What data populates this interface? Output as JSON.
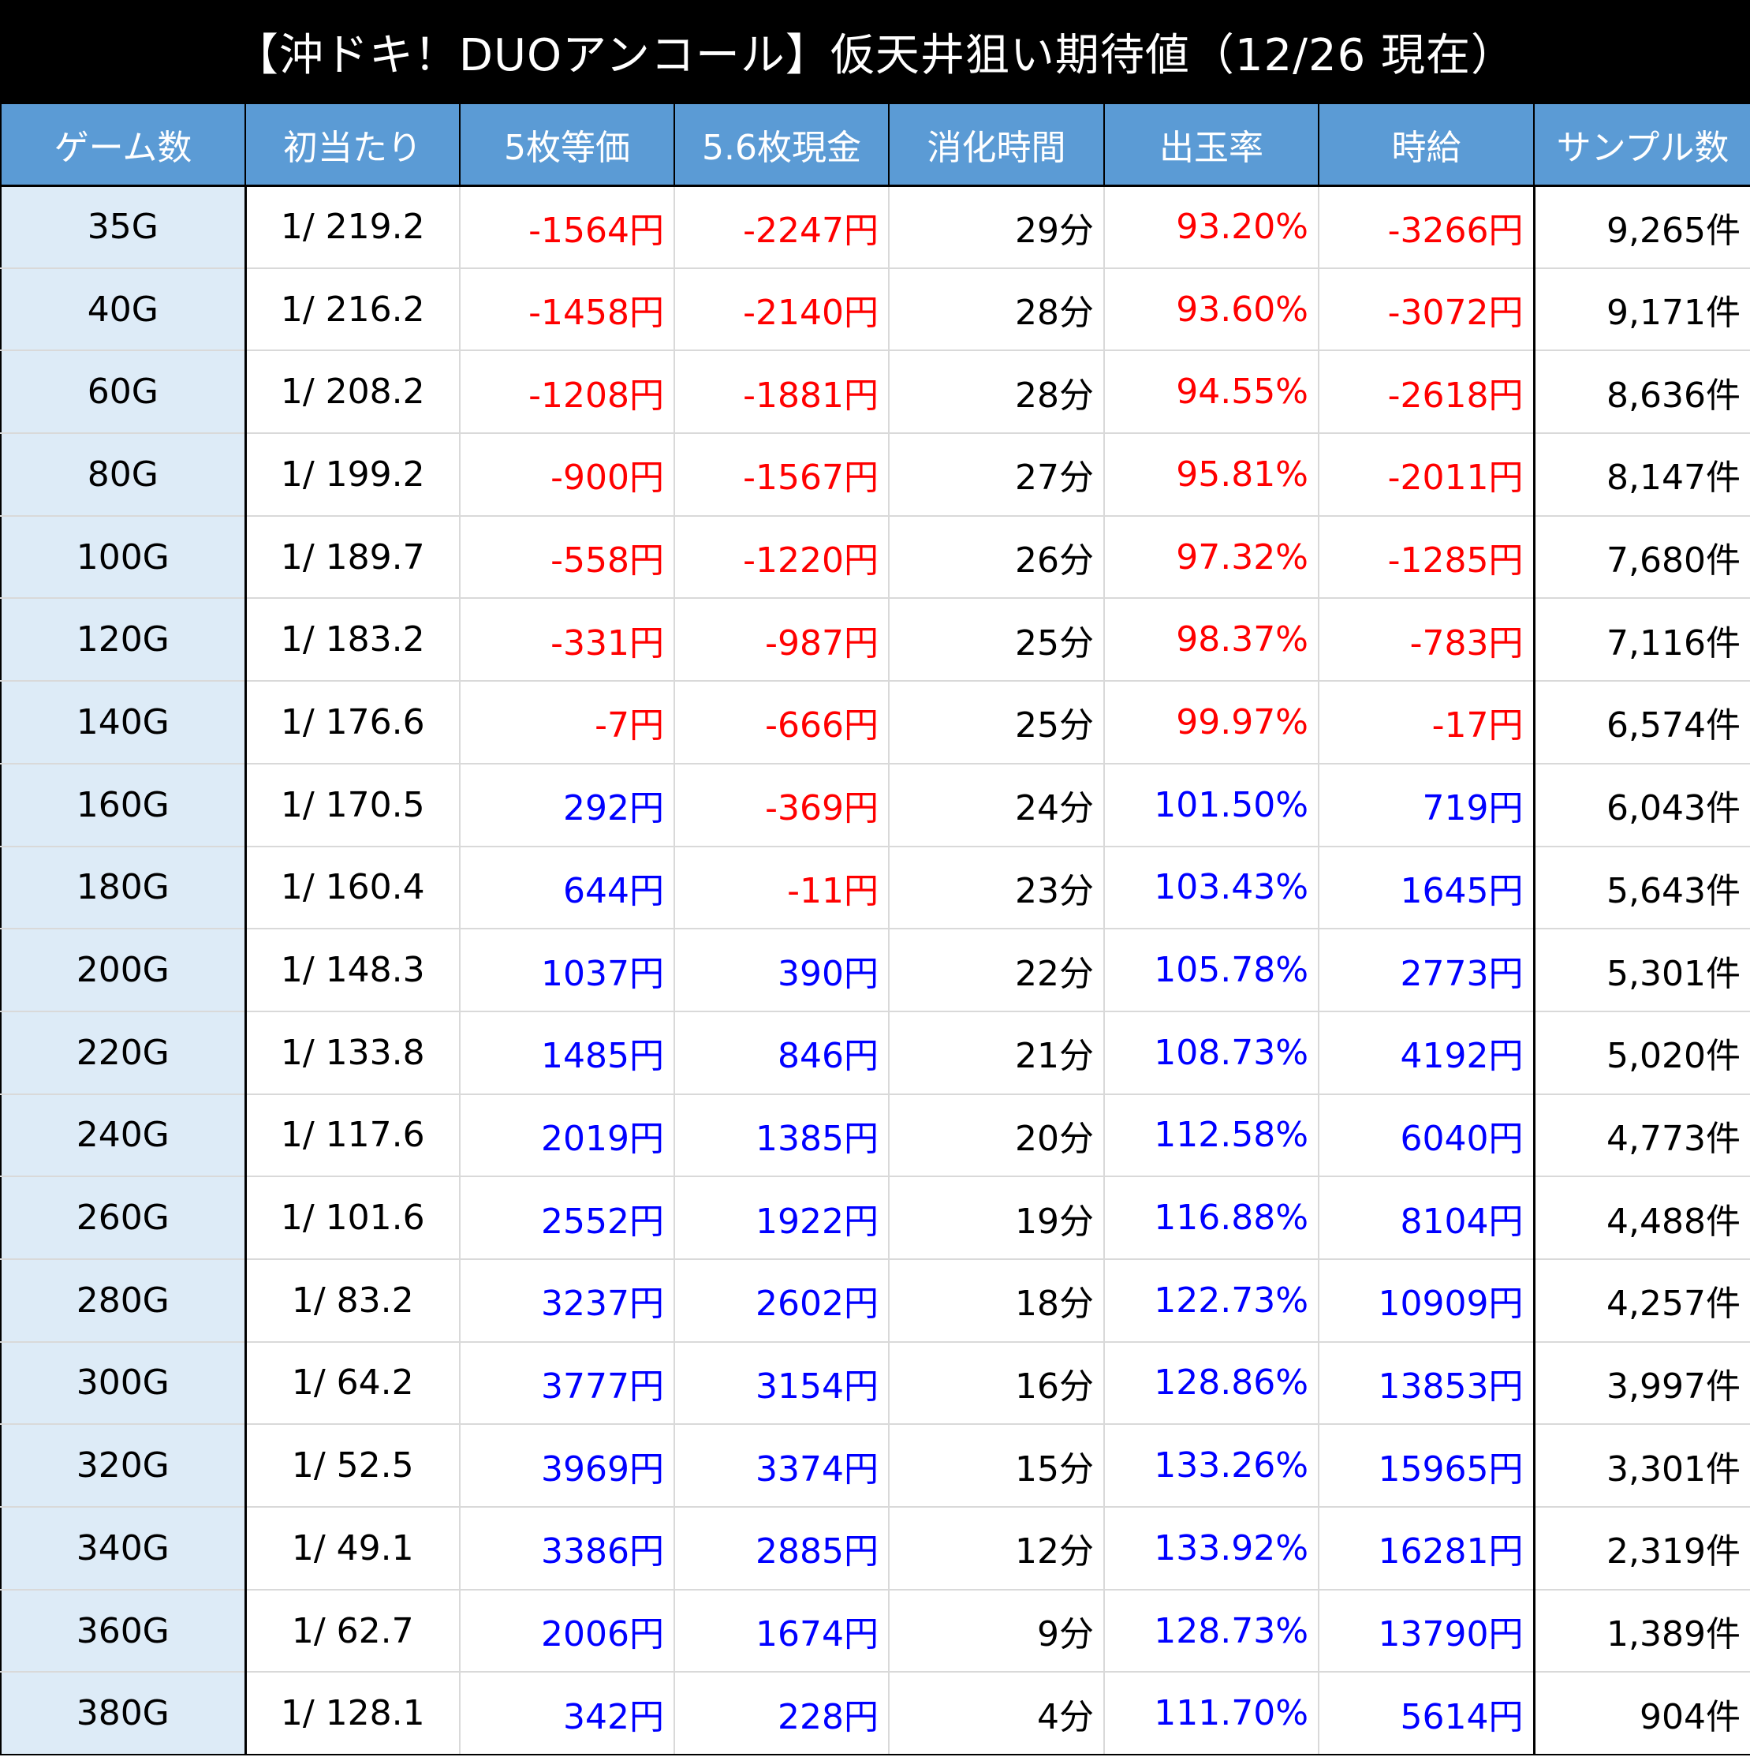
{
  "title": "【沖ドキ！DUOアンコール】仮天井狙い期待値（12/26 現在）",
  "colors": {
    "header_bg": "#5b9bd5",
    "first_col_bg": "#ddebf7",
    "negative": "#ff0000",
    "positive": "#0000ff"
  },
  "headers": [
    "ゲーム数",
    "初当たり",
    "5枚等価",
    "5.6枚現金",
    "消化時間",
    "出玉率",
    "時給",
    "サンプル数"
  ],
  "rows": [
    {
      "game": "35G",
      "hit": "1/ 219.2",
      "eq5": "-1564円",
      "cash56": "-2247円",
      "time": "29分",
      "rate": "93.20%",
      "hourly": "-3266円",
      "samples": "9,265件"
    },
    {
      "game": "40G",
      "hit": "1/ 216.2",
      "eq5": "-1458円",
      "cash56": "-2140円",
      "time": "28分",
      "rate": "93.60%",
      "hourly": "-3072円",
      "samples": "9,171件"
    },
    {
      "game": "60G",
      "hit": "1/ 208.2",
      "eq5": "-1208円",
      "cash56": "-1881円",
      "time": "28分",
      "rate": "94.55%",
      "hourly": "-2618円",
      "samples": "8,636件"
    },
    {
      "game": "80G",
      "hit": "1/ 199.2",
      "eq5": "-900円",
      "cash56": "-1567円",
      "time": "27分",
      "rate": "95.81%",
      "hourly": "-2011円",
      "samples": "8,147件"
    },
    {
      "game": "100G",
      "hit": "1/ 189.7",
      "eq5": "-558円",
      "cash56": "-1220円",
      "time": "26分",
      "rate": "97.32%",
      "hourly": "-1285円",
      "samples": "7,680件"
    },
    {
      "game": "120G",
      "hit": "1/ 183.2",
      "eq5": "-331円",
      "cash56": "-987円",
      "time": "25分",
      "rate": "98.37%",
      "hourly": "-783円",
      "samples": "7,116件"
    },
    {
      "game": "140G",
      "hit": "1/ 176.6",
      "eq5": "-7円",
      "cash56": "-666円",
      "time": "25分",
      "rate": "99.97%",
      "hourly": "-17円",
      "samples": "6,574件"
    },
    {
      "game": "160G",
      "hit": "1/ 170.5",
      "eq5": "292円",
      "cash56": "-369円",
      "time": "24分",
      "rate": "101.50%",
      "hourly": "719円",
      "samples": "6,043件"
    },
    {
      "game": "180G",
      "hit": "1/ 160.4",
      "eq5": "644円",
      "cash56": "-11円",
      "time": "23分",
      "rate": "103.43%",
      "hourly": "1645円",
      "samples": "5,643件"
    },
    {
      "game": "200G",
      "hit": "1/ 148.3",
      "eq5": "1037円",
      "cash56": "390円",
      "time": "22分",
      "rate": "105.78%",
      "hourly": "2773円",
      "samples": "5,301件"
    },
    {
      "game": "220G",
      "hit": "1/ 133.8",
      "eq5": "1485円",
      "cash56": "846円",
      "time": "21分",
      "rate": "108.73%",
      "hourly": "4192円",
      "samples": "5,020件"
    },
    {
      "game": "240G",
      "hit": "1/ 117.6",
      "eq5": "2019円",
      "cash56": "1385円",
      "time": "20分",
      "rate": "112.58%",
      "hourly": "6040円",
      "samples": "4,773件"
    },
    {
      "game": "260G",
      "hit": "1/ 101.6",
      "eq5": "2552円",
      "cash56": "1922円",
      "time": "19分",
      "rate": "116.88%",
      "hourly": "8104円",
      "samples": "4,488件"
    },
    {
      "game": "280G",
      "hit": "1/ 83.2",
      "eq5": "3237円",
      "cash56": "2602円",
      "time": "18分",
      "rate": "122.73%",
      "hourly": "10909円",
      "samples": "4,257件"
    },
    {
      "game": "300G",
      "hit": "1/ 64.2",
      "eq5": "3777円",
      "cash56": "3154円",
      "time": "16分",
      "rate": "128.86%",
      "hourly": "13853円",
      "samples": "3,997件"
    },
    {
      "game": "320G",
      "hit": "1/ 52.5",
      "eq5": "3969円",
      "cash56": "3374円",
      "time": "15分",
      "rate": "133.26%",
      "hourly": "15965円",
      "samples": "3,301件"
    },
    {
      "game": "340G",
      "hit": "1/ 49.1",
      "eq5": "3386円",
      "cash56": "2885円",
      "time": "12分",
      "rate": "133.92%",
      "hourly": "16281円",
      "samples": "2,319件"
    },
    {
      "game": "360G",
      "hit": "1/ 62.7",
      "eq5": "2006円",
      "cash56": "1674円",
      "time": "9分",
      "rate": "128.73%",
      "hourly": "13790円",
      "samples": "1,389件"
    },
    {
      "game": "380G",
      "hit": "1/ 128.1",
      "eq5": "342円",
      "cash56": "228円",
      "time": "4分",
      "rate": "111.70%",
      "hourly": "5614円",
      "samples": "904件"
    }
  ]
}
